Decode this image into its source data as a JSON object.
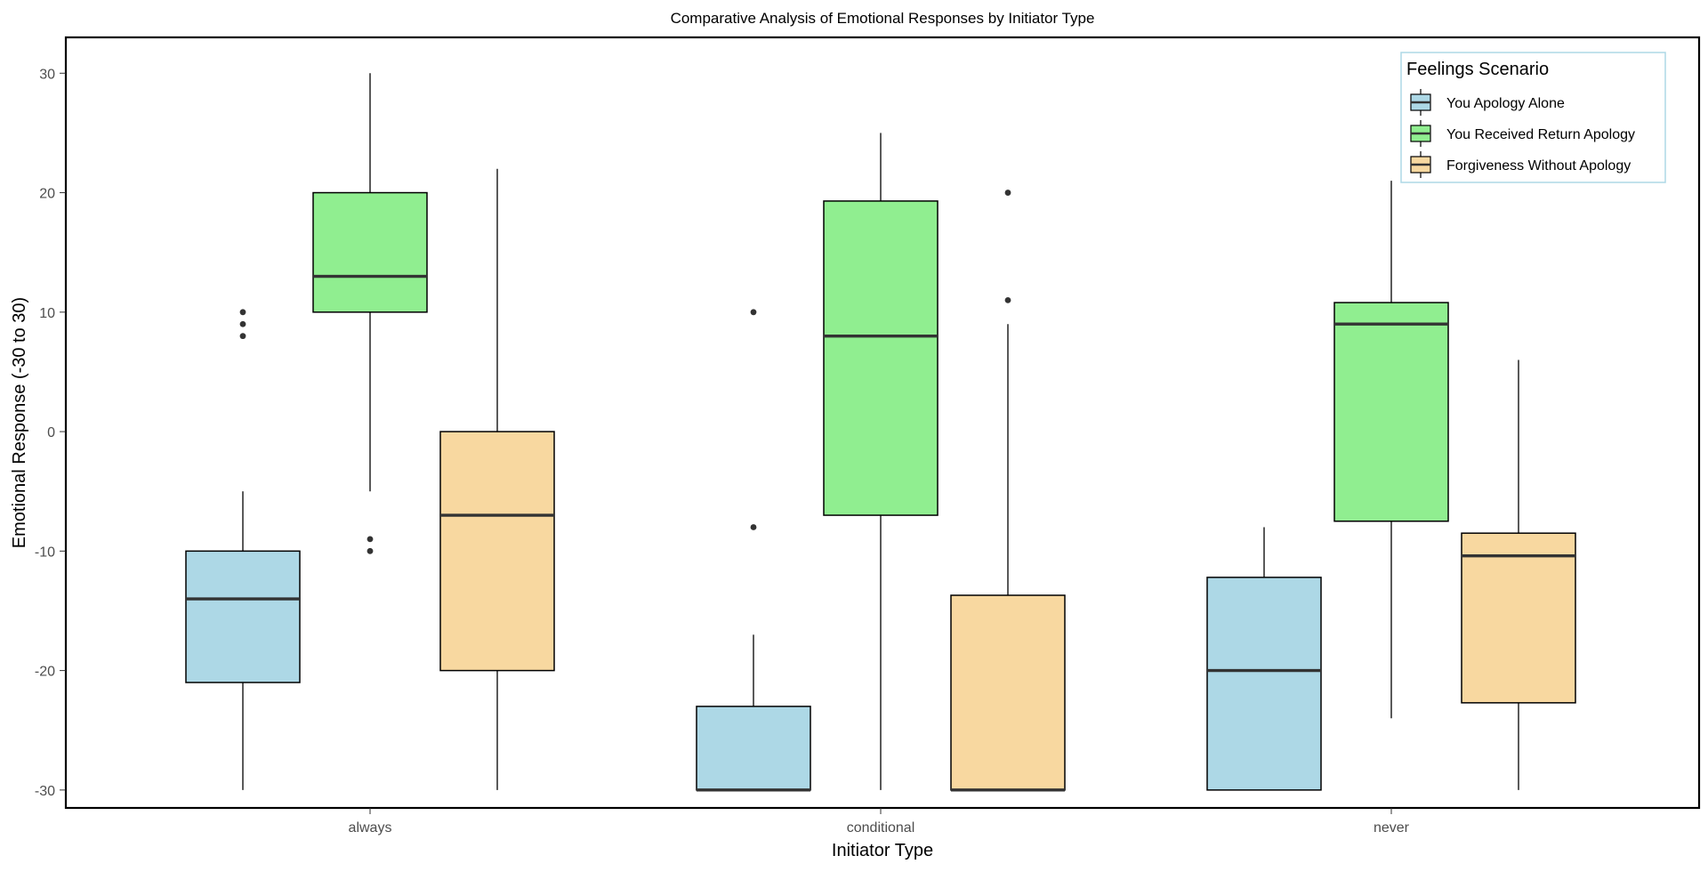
{
  "chart_data": {
    "type": "boxplot",
    "title": "Comparative Analysis of Emotional Responses by Initiator Type",
    "xlabel": "Initiator Type",
    "ylabel": "Emotional Response (-30 to 30)",
    "categories": [
      "always",
      "conditional",
      "never"
    ],
    "y_ticks": [
      30,
      20,
      10,
      0,
      -10,
      -20,
      -30
    ],
    "ylim": [
      -31.5,
      33
    ],
    "grid": false,
    "legend": {
      "title": "Feelings Scenario",
      "position": "top-right",
      "border_color": "#add8e6"
    },
    "series": [
      {
        "name": "You Apology Alone",
        "color": "#add8e6",
        "boxes": [
          {
            "category": "always",
            "whisker_low": -30,
            "q1": -21,
            "median": -14,
            "q3": -10,
            "whisker_high": -5,
            "outliers": [
              8,
              9,
              10
            ]
          },
          {
            "category": "conditional",
            "whisker_low": -30,
            "q1": -30,
            "median": -30,
            "q3": -23,
            "whisker_high": -17,
            "outliers": [
              -8,
              10
            ]
          },
          {
            "category": "never",
            "whisker_low": -30,
            "q1": -30,
            "median": -20,
            "q3": -12.2,
            "whisker_high": -8,
            "outliers": []
          }
        ]
      },
      {
        "name": "You Received Return Apology",
        "color": "#90ee90",
        "boxes": [
          {
            "category": "always",
            "whisker_low": -5,
            "q1": 10,
            "median": 13,
            "q3": 20,
            "whisker_high": 30,
            "outliers": [
              -9,
              -10
            ]
          },
          {
            "category": "conditional",
            "whisker_low": -30,
            "q1": -7,
            "median": 8,
            "q3": 19.3,
            "whisker_high": 25,
            "outliers": []
          },
          {
            "category": "never",
            "whisker_low": -24,
            "q1": -7.5,
            "median": 9,
            "q3": 10.8,
            "whisker_high": 21,
            "outliers": []
          }
        ]
      },
      {
        "name": "Forgiveness Without Apology",
        "color": "#f8d8a0",
        "boxes": [
          {
            "category": "always",
            "whisker_low": -30,
            "q1": -20,
            "median": -7,
            "q3": 0,
            "whisker_high": 22,
            "outliers": []
          },
          {
            "category": "conditional",
            "whisker_low": -30,
            "q1": -30,
            "median": -30,
            "q3": -13.7,
            "whisker_high": 9,
            "outliers": [
              11,
              20
            ]
          },
          {
            "category": "never",
            "whisker_low": -30,
            "q1": -22.7,
            "median": -10.4,
            "q3": -8.5,
            "whisker_high": 6,
            "outliers": []
          }
        ]
      }
    ]
  }
}
